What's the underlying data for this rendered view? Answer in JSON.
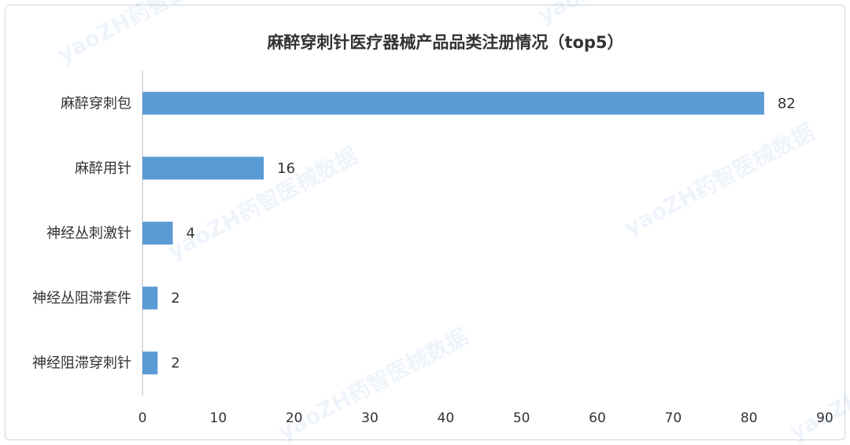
{
  "watermark": "yaoZH药智医械数据",
  "chart_data": {
    "type": "bar",
    "orientation": "horizontal",
    "title": "麻醉穿刺针医疗器械产品品类注册情况（top5）",
    "categories": [
      "麻醉穿刺包",
      "麻醉用针",
      "神经丛刺激针",
      "神经丛阻滞套件",
      "神经阻滞穿刺针"
    ],
    "values": [
      82,
      16,
      4,
      2,
      2
    ],
    "xlim": [
      0,
      90
    ],
    "xticks": [
      "0",
      "10",
      "20",
      "30",
      "40",
      "50",
      "60",
      "70",
      "80",
      "90"
    ],
    "bar_color": "#5b9bd5",
    "grid": false,
    "legend": "none"
  }
}
